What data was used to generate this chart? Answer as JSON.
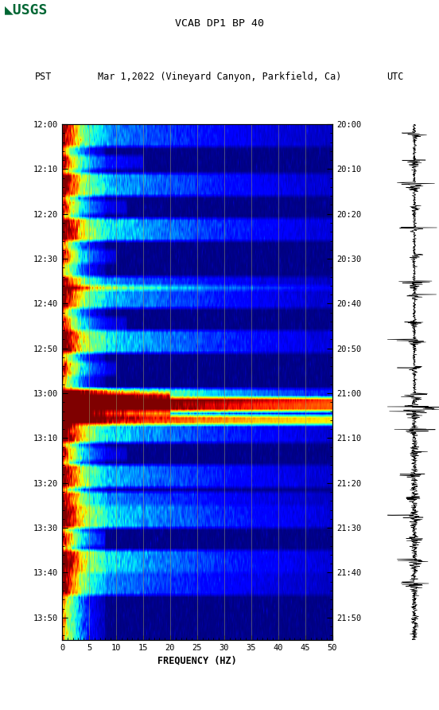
{
  "title_line1": "VCAB DP1 BP 40",
  "title_line2_pst": "PST",
  "title_line2_center": "Mar 1,2022 (Vineyard Canyon, Parkfield, Ca)",
  "title_line2_utc": "UTC",
  "xlabel": "FREQUENCY (HZ)",
  "freq_min": 0,
  "freq_max": 50,
  "ytick_pst": [
    "12:00",
    "12:10",
    "12:20",
    "12:30",
    "12:40",
    "12:50",
    "13:00",
    "13:10",
    "13:20",
    "13:30",
    "13:40",
    "13:50"
  ],
  "ytick_utc": [
    "20:00",
    "20:10",
    "20:20",
    "20:30",
    "20:40",
    "20:50",
    "21:00",
    "21:10",
    "21:20",
    "21:30",
    "21:40",
    "21:50"
  ],
  "xticks": [
    0,
    5,
    10,
    15,
    20,
    25,
    30,
    35,
    40,
    45,
    50
  ],
  "bg_color": "#ffffff",
  "spectrogram_cmap": "jet",
  "grid_color": "#999966",
  "usgs_green": "#006633",
  "n_time": 115,
  "n_freq": 400,
  "vmin": 0,
  "vmax": 14
}
